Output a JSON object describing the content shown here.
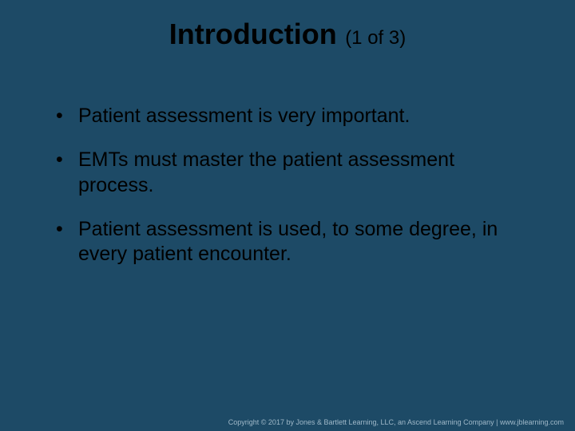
{
  "slide": {
    "background_color": "#1d4a66",
    "text_color": "#000000",
    "footer_color": "#9fb8c8",
    "title": {
      "main": "Introduction",
      "sub": "(1 of 3)",
      "main_fontsize": 36,
      "sub_fontsize": 24,
      "font_weight_main": "bold"
    },
    "bullets": [
      "Patient assessment is very important.",
      "EMTs must master the patient assessment process.",
      "Patient assessment is used, to some degree, in every patient encounter."
    ],
    "bullet_fontsize": 25,
    "footer": "Copyright © 2017 by Jones & Bartlett Learning, LLC, an Ascend Learning Company  |  www.jblearning.com"
  }
}
